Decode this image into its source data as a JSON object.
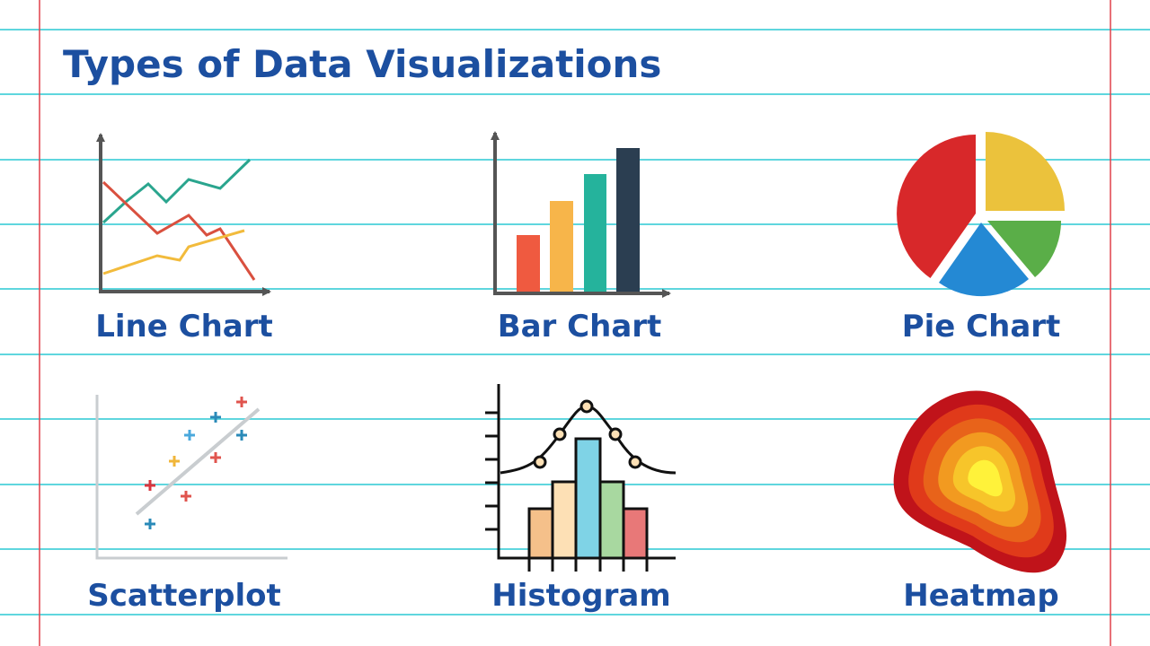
{
  "title": "Types of Data Visualizations",
  "items": [
    {
      "label": "Line Chart"
    },
    {
      "label": "Bar Chart"
    },
    {
      "label": "Pie Chart"
    },
    {
      "label": "Scatterplot"
    },
    {
      "label": "Histogram"
    },
    {
      "label": "Heatmap"
    }
  ]
}
